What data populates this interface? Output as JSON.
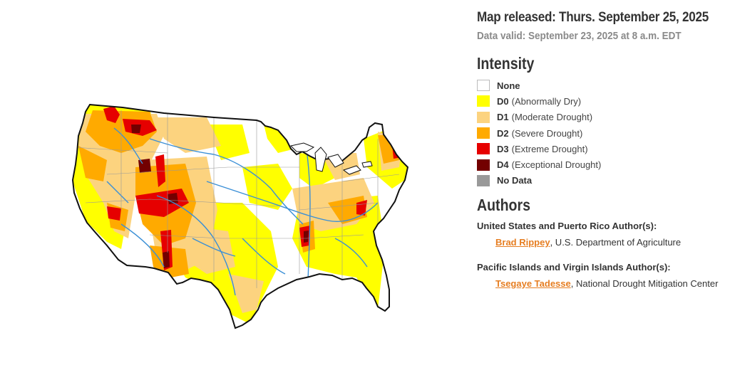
{
  "map": {
    "colors": {
      "land": "#ffffff",
      "border": "#111111",
      "state_line": "#999999",
      "river": "#3a8fd6",
      "D0": "#ffff00",
      "D1": "#fcd37f",
      "D2": "#ffaa00",
      "D3": "#e60000",
      "D4": "#730000"
    }
  },
  "info": {
    "released": "Map released: Thurs. September 25, 2025",
    "valid": "Data valid: September 23, 2025 at 8 a.m. EDT"
  },
  "legend": {
    "title": "Intensity",
    "items": [
      {
        "code": "None",
        "desc": "",
        "color": "#ffffff"
      },
      {
        "code": "D0",
        "desc": "(Abnormally Dry)",
        "color": "#ffff00"
      },
      {
        "code": "D1",
        "desc": "(Moderate Drought)",
        "color": "#fcd37f"
      },
      {
        "code": "D2",
        "desc": "(Severe Drought)",
        "color": "#ffaa00"
      },
      {
        "code": "D3",
        "desc": "(Extreme Drought)",
        "color": "#e60000"
      },
      {
        "code": "D4",
        "desc": "(Exceptional Drought)",
        "color": "#730000"
      },
      {
        "code": "No Data",
        "desc": "",
        "color": "#999999"
      }
    ]
  },
  "authors": {
    "title": "Authors",
    "groups": [
      {
        "label": "United States and Puerto Rico Author(s):",
        "name": "Brad Rippey",
        "org": ", U.S. Department of Agriculture"
      },
      {
        "label": "Pacific Islands and Virgin Islands Author(s):",
        "name": "Tsegaye Tadesse",
        "org": ", National Drought Mitigation Center"
      }
    ]
  }
}
